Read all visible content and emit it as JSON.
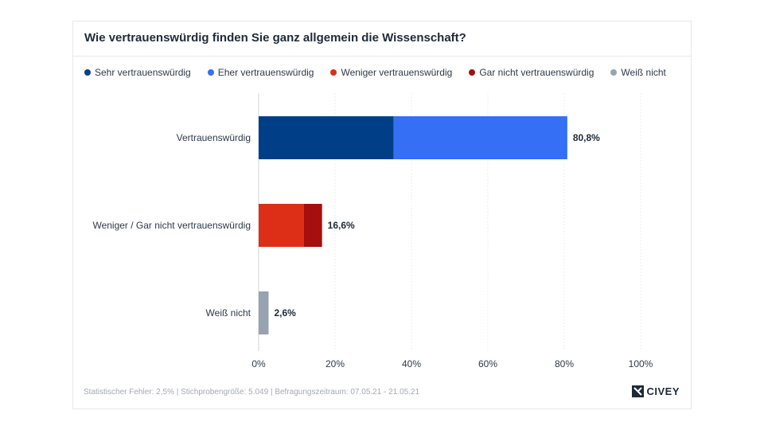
{
  "chart_data": {
    "type": "bar",
    "orientation": "horizontal",
    "stacked": true,
    "title": "Wie vertrauenswürdig finden Sie ganz allgemein die Wissenschaft?",
    "categories": [
      "Vertrauenswürdig",
      "Weniger / Gar nicht vertrauenswürdig",
      "Weiß nicht"
    ],
    "totals": [
      "80,8%",
      "16,6%",
      "2,6%"
    ],
    "series": [
      {
        "name": "Sehr vertrauenswürdig",
        "color": "#003f88",
        "values": [
          35.3,
          0,
          0
        ]
      },
      {
        "name": "Eher vertrauenswürdig",
        "color": "#346ff5",
        "values": [
          45.5,
          0,
          0
        ]
      },
      {
        "name": "Weniger vertrauenswürdig",
        "color": "#dd2f18",
        "values": [
          0,
          11.8,
          0
        ]
      },
      {
        "name": "Gar nicht vertrauenswürdig",
        "color": "#a70e0e",
        "values": [
          0,
          4.8,
          0
        ]
      },
      {
        "name": "Weiß nicht",
        "color": "#98a3b1",
        "values": [
          0,
          0,
          2.6
        ]
      }
    ],
    "xlim": [
      0,
      100
    ],
    "xticks": [
      "0%",
      "20%",
      "40%",
      "60%",
      "80%",
      "100%"
    ],
    "grid": true,
    "legend_position": "top"
  },
  "footer": {
    "note": "Statistischer Fehler: 2,5% | Stichprobengröße: 5.049 | Befragungszeitraum: 07.05.21 - 21.05.21",
    "brand": "CIVEY"
  }
}
